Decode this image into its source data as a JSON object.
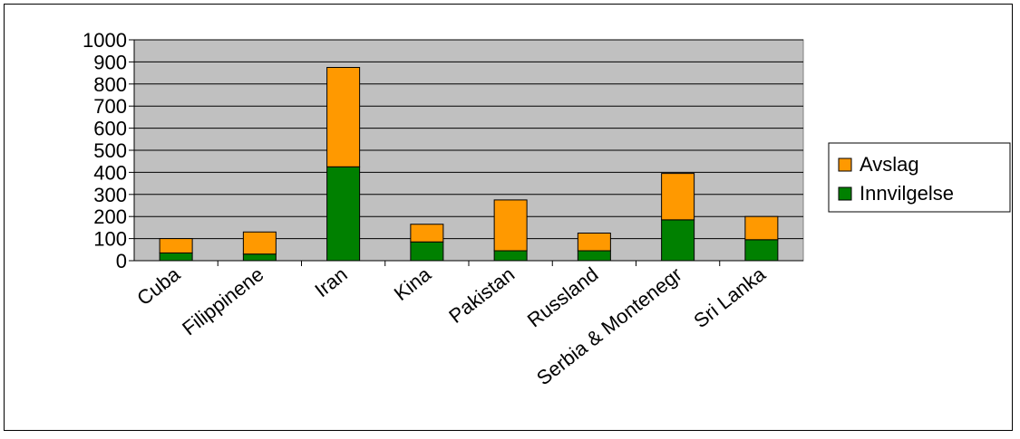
{
  "chart_data": {
    "type": "bar",
    "stacked": true,
    "categories": [
      "Cuba",
      "Filippinene",
      "Iran",
      "Kina",
      "Pakistan",
      "Russland",
      "Serbia & Montenegr",
      "Sri Lanka"
    ],
    "series": [
      {
        "name": "Innvilgelse",
        "color": "#008000",
        "values": [
          35,
          30,
          425,
          85,
          45,
          45,
          185,
          95
        ]
      },
      {
        "name": "Avslag",
        "color": "#FF9900",
        "values": [
          65,
          100,
          450,
          80,
          230,
          80,
          210,
          105
        ]
      }
    ],
    "yticks": [
      "0",
      "100",
      "200",
      "300",
      "400",
      "500",
      "600",
      "700",
      "800",
      "900",
      "1000"
    ],
    "ylim": [
      0,
      1000
    ],
    "grid": true,
    "plot_background": "#C0C0C0",
    "legend": {
      "position": "right",
      "entries": [
        "Avslag",
        "Innvilgelse"
      ]
    }
  }
}
